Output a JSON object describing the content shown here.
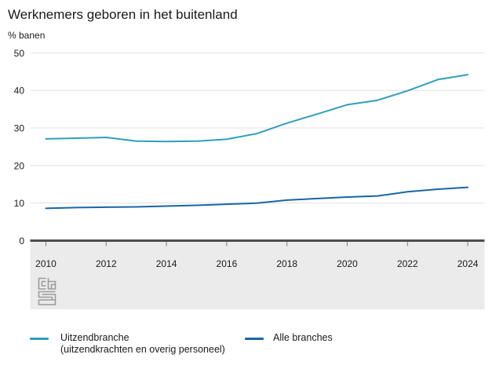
{
  "header": {
    "title": "Werknemers geboren in het buitenland",
    "unit_label": "% banen"
  },
  "chart_data": {
    "type": "line",
    "x": [
      2010,
      2011,
      2012,
      2013,
      2014,
      2015,
      2016,
      2017,
      2018,
      2019,
      2020,
      2021,
      2022,
      2023,
      2024
    ],
    "series": [
      {
        "name": "Uitzendbranche (uitzendkrachten en overig personeel)",
        "color": "#2f9fbe",
        "values": [
          27.1,
          27.3,
          27.5,
          26.5,
          26.4,
          26.5,
          27.0,
          28.5,
          31.3,
          33.7,
          36.2,
          37.4,
          39.9,
          42.9,
          44.2
        ]
      },
      {
        "name": "Alle branches",
        "color": "#1866a5",
        "values": [
          8.6,
          8.8,
          8.9,
          9.0,
          9.2,
          9.4,
          9.7,
          10.0,
          10.8,
          11.2,
          11.6,
          11.9,
          13.0,
          13.7,
          14.2
        ]
      }
    ],
    "title": "Werknemers geboren in het buitenland",
    "ylabel": "% banen",
    "xlabel": "",
    "ylim": [
      0,
      50
    ],
    "yticks": [
      0,
      10,
      20,
      30,
      40,
      50
    ],
    "xticks": [
      2010,
      2012,
      2014,
      2016,
      2018,
      2020,
      2022,
      2024
    ],
    "grid": true,
    "legend_position": "bottom"
  },
  "style_colors": {
    "gridline": "#e0e0e0",
    "axis_line": "#4d4d4d",
    "tick": "#808080",
    "axis_band": "#ebebeb",
    "tick_label": "#1a1a1a",
    "logo": "#9b9b9b"
  },
  "legend": {
    "items": [
      {
        "label": "Uitzendbranche",
        "sublabel": "(uitzendkrachten en overig personeel)",
        "color": "#2f9fbe"
      },
      {
        "label": "Alle branches",
        "sublabel": "",
        "color": "#1866a5"
      }
    ]
  },
  "footer": {
    "logo_name": "cbs-logo"
  }
}
